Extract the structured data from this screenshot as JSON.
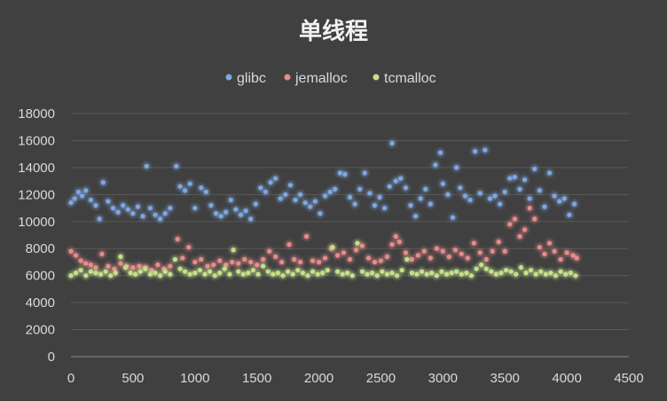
{
  "chart_data": {
    "type": "scatter",
    "title": "单线程",
    "xlabel": "",
    "ylabel": "",
    "xlim": [
      0,
      4500
    ],
    "ylim": [
      0,
      18000
    ],
    "x_ticks": [
      "0",
      "500",
      "1000",
      "1500",
      "2000",
      "2500",
      "3000",
      "3500",
      "4000",
      "4500"
    ],
    "y_ticks": [
      "0",
      "2000",
      "4000",
      "6000",
      "8000",
      "10000",
      "12000",
      "14000",
      "16000",
      "18000"
    ],
    "grid": true,
    "legend_position": "top",
    "background": "#404040",
    "series": [
      {
        "name": "glibc",
        "color": "#7fa7e0",
        "points": [
          [
            0,
            11400
          ],
          [
            30,
            11700
          ],
          [
            60,
            12200
          ],
          [
            90,
            11900
          ],
          [
            120,
            12300
          ],
          [
            160,
            11600
          ],
          [
            200,
            11200
          ],
          [
            230,
            10200
          ],
          [
            260,
            12900
          ],
          [
            300,
            11500
          ],
          [
            340,
            11000
          ],
          [
            380,
            10700
          ],
          [
            420,
            11200
          ],
          [
            460,
            10900
          ],
          [
            500,
            10600
          ],
          [
            540,
            11100
          ],
          [
            580,
            10400
          ],
          [
            610,
            14100
          ],
          [
            640,
            11000
          ],
          [
            680,
            10500
          ],
          [
            720,
            10200
          ],
          [
            760,
            10600
          ],
          [
            800,
            11000
          ],
          [
            850,
            14100
          ],
          [
            880,
            12600
          ],
          [
            920,
            12300
          ],
          [
            960,
            12800
          ],
          [
            1000,
            11000
          ],
          [
            1050,
            12500
          ],
          [
            1090,
            12200
          ],
          [
            1130,
            11200
          ],
          [
            1170,
            10600
          ],
          [
            1210,
            10400
          ],
          [
            1250,
            10700
          ],
          [
            1290,
            11600
          ],
          [
            1330,
            10900
          ],
          [
            1370,
            10500
          ],
          [
            1410,
            10800
          ],
          [
            1450,
            10200
          ],
          [
            1490,
            11300
          ],
          [
            1530,
            12500
          ],
          [
            1570,
            12200
          ],
          [
            1610,
            12900
          ],
          [
            1650,
            13200
          ],
          [
            1690,
            11700
          ],
          [
            1730,
            12000
          ],
          [
            1770,
            12700
          ],
          [
            1810,
            11600
          ],
          [
            1850,
            12000
          ],
          [
            1890,
            11400
          ],
          [
            1930,
            11100
          ],
          [
            1970,
            11500
          ],
          [
            2010,
            10600
          ],
          [
            2050,
            11900
          ],
          [
            2090,
            12200
          ],
          [
            2130,
            12400
          ],
          [
            2170,
            13600
          ],
          [
            2210,
            13500
          ],
          [
            2250,
            11800
          ],
          [
            2290,
            11300
          ],
          [
            2330,
            12400
          ],
          [
            2370,
            13600
          ],
          [
            2410,
            12100
          ],
          [
            2450,
            11200
          ],
          [
            2490,
            11800
          ],
          [
            2530,
            11000
          ],
          [
            2570,
            12600
          ],
          [
            2590,
            15800
          ],
          [
            2620,
            13000
          ],
          [
            2660,
            13200
          ],
          [
            2700,
            12500
          ],
          [
            2740,
            11200
          ],
          [
            2780,
            10400
          ],
          [
            2820,
            11700
          ],
          [
            2860,
            12400
          ],
          [
            2900,
            11300
          ],
          [
            2940,
            14200
          ],
          [
            2980,
            15100
          ],
          [
            3000,
            12800
          ],
          [
            3040,
            12000
          ],
          [
            3080,
            10300
          ],
          [
            3110,
            14000
          ],
          [
            3140,
            12500
          ],
          [
            3180,
            11900
          ],
          [
            3220,
            11600
          ],
          [
            3260,
            15200
          ],
          [
            3300,
            12100
          ],
          [
            3340,
            15300
          ],
          [
            3380,
            11700
          ],
          [
            3420,
            11900
          ],
          [
            3460,
            11300
          ],
          [
            3500,
            12200
          ],
          [
            3540,
            13200
          ],
          [
            3580,
            13300
          ],
          [
            3620,
            12400
          ],
          [
            3660,
            13100
          ],
          [
            3700,
            11700
          ],
          [
            3740,
            13900
          ],
          [
            3780,
            12300
          ],
          [
            3820,
            11100
          ],
          [
            3860,
            13600
          ],
          [
            3900,
            11900
          ],
          [
            3940,
            11500
          ],
          [
            3980,
            11700
          ],
          [
            4020,
            10500
          ],
          [
            4060,
            11300
          ]
        ]
      },
      {
        "name": "jemalloc",
        "color": "#e88b8b",
        "points": [
          [
            0,
            7800
          ],
          [
            40,
            7500
          ],
          [
            80,
            7100
          ],
          [
            120,
            6900
          ],
          [
            160,
            6800
          ],
          [
            200,
            6600
          ],
          [
            250,
            7600
          ],
          [
            300,
            6700
          ],
          [
            350,
            6500
          ],
          [
            400,
            6900
          ],
          [
            450,
            6700
          ],
          [
            500,
            6600
          ],
          [
            550,
            6700
          ],
          [
            600,
            6600
          ],
          [
            650,
            6400
          ],
          [
            700,
            6800
          ],
          [
            750,
            6500
          ],
          [
            800,
            6700
          ],
          [
            860,
            8700
          ],
          [
            900,
            7300
          ],
          [
            950,
            8100
          ],
          [
            1000,
            7000
          ],
          [
            1050,
            7200
          ],
          [
            1100,
            6700
          ],
          [
            1150,
            6800
          ],
          [
            1200,
            7100
          ],
          [
            1250,
            6800
          ],
          [
            1300,
            7000
          ],
          [
            1350,
            6900
          ],
          [
            1400,
            7200
          ],
          [
            1450,
            7000
          ],
          [
            1500,
            6800
          ],
          [
            1550,
            7200
          ],
          [
            1600,
            7800
          ],
          [
            1650,
            7400
          ],
          [
            1700,
            7000
          ],
          [
            1760,
            8300
          ],
          [
            1800,
            7200
          ],
          [
            1850,
            7000
          ],
          [
            1900,
            8900
          ],
          [
            1950,
            7100
          ],
          [
            2000,
            7000
          ],
          [
            2050,
            7300
          ],
          [
            2100,
            8000
          ],
          [
            2150,
            7500
          ],
          [
            2200,
            7700
          ],
          [
            2250,
            7200
          ],
          [
            2300,
            7900
          ],
          [
            2350,
            8200
          ],
          [
            2400,
            7300
          ],
          [
            2450,
            7000
          ],
          [
            2500,
            7100
          ],
          [
            2550,
            7400
          ],
          [
            2590,
            8300
          ],
          [
            2620,
            8900
          ],
          [
            2650,
            8500
          ],
          [
            2700,
            7700
          ],
          [
            2750,
            7200
          ],
          [
            2800,
            7500
          ],
          [
            2850,
            7800
          ],
          [
            2900,
            7300
          ],
          [
            2950,
            8000
          ],
          [
            3000,
            7800
          ],
          [
            3050,
            7400
          ],
          [
            3100,
            7900
          ],
          [
            3150,
            7600
          ],
          [
            3200,
            7300
          ],
          [
            3250,
            8400
          ],
          [
            3300,
            7700
          ],
          [
            3350,
            7200
          ],
          [
            3400,
            7800
          ],
          [
            3450,
            8500
          ],
          [
            3500,
            7800
          ],
          [
            3540,
            9800
          ],
          [
            3580,
            10200
          ],
          [
            3620,
            8900
          ],
          [
            3660,
            9400
          ],
          [
            3700,
            11000
          ],
          [
            3740,
            10200
          ],
          [
            3780,
            8100
          ],
          [
            3820,
            7600
          ],
          [
            3860,
            8400
          ],
          [
            3900,
            7800
          ],
          [
            3950,
            7200
          ],
          [
            4000,
            7700
          ],
          [
            4050,
            7500
          ],
          [
            4080,
            7300
          ]
        ]
      },
      {
        "name": "tcmalloc",
        "color": "#c5e08a",
        "points": [
          [
            0,
            6000
          ],
          [
            40,
            6200
          ],
          [
            80,
            6400
          ],
          [
            120,
            6000
          ],
          [
            160,
            6300
          ],
          [
            200,
            6200
          ],
          [
            240,
            6100
          ],
          [
            280,
            6300
          ],
          [
            320,
            6000
          ],
          [
            360,
            6200
          ],
          [
            400,
            7400
          ],
          [
            440,
            6600
          ],
          [
            480,
            6200
          ],
          [
            520,
            6100
          ],
          [
            560,
            6300
          ],
          [
            600,
            6500
          ],
          [
            640,
            6100
          ],
          [
            680,
            6200
          ],
          [
            720,
            6000
          ],
          [
            760,
            6300
          ],
          [
            800,
            6100
          ],
          [
            840,
            7200
          ],
          [
            880,
            6500
          ],
          [
            920,
            6300
          ],
          [
            960,
            6100
          ],
          [
            1000,
            6200
          ],
          [
            1040,
            6400
          ],
          [
            1080,
            6100
          ],
          [
            1120,
            6300
          ],
          [
            1160,
            6000
          ],
          [
            1200,
            6200
          ],
          [
            1240,
            6500
          ],
          [
            1280,
            6100
          ],
          [
            1310,
            7900
          ],
          [
            1350,
            6300
          ],
          [
            1390,
            6100
          ],
          [
            1430,
            6200
          ],
          [
            1470,
            6400
          ],
          [
            1510,
            6100
          ],
          [
            1550,
            6700
          ],
          [
            1590,
            6300
          ],
          [
            1630,
            6100
          ],
          [
            1670,
            6200
          ],
          [
            1710,
            6000
          ],
          [
            1750,
            6300
          ],
          [
            1790,
            6100
          ],
          [
            1830,
            6400
          ],
          [
            1870,
            6200
          ],
          [
            1910,
            6000
          ],
          [
            1950,
            6300
          ],
          [
            1990,
            6100
          ],
          [
            2030,
            6200
          ],
          [
            2070,
            6400
          ],
          [
            2110,
            8100
          ],
          [
            2150,
            6300
          ],
          [
            2190,
            6100
          ],
          [
            2230,
            6200
          ],
          [
            2270,
            6000
          ],
          [
            2310,
            8400
          ],
          [
            2350,
            6300
          ],
          [
            2390,
            6100
          ],
          [
            2430,
            6200
          ],
          [
            2470,
            6000
          ],
          [
            2510,
            6300
          ],
          [
            2550,
            6100
          ],
          [
            2590,
            6200
          ],
          [
            2630,
            6000
          ],
          [
            2670,
            6400
          ],
          [
            2710,
            7200
          ],
          [
            2750,
            6200
          ],
          [
            2790,
            6100
          ],
          [
            2830,
            6300
          ],
          [
            2870,
            6100
          ],
          [
            2910,
            6200
          ],
          [
            2950,
            6000
          ],
          [
            2990,
            6300
          ],
          [
            3030,
            6100
          ],
          [
            3070,
            6200
          ],
          [
            3110,
            6300
          ],
          [
            3150,
            6100
          ],
          [
            3190,
            6200
          ],
          [
            3230,
            6000
          ],
          [
            3270,
            6500
          ],
          [
            3310,
            6800
          ],
          [
            3350,
            6500
          ],
          [
            3390,
            6300
          ],
          [
            3430,
            6100
          ],
          [
            3470,
            6200
          ],
          [
            3510,
            6400
          ],
          [
            3550,
            6300
          ],
          [
            3590,
            6100
          ],
          [
            3630,
            6600
          ],
          [
            3670,
            6200
          ],
          [
            3710,
            6400
          ],
          [
            3750,
            6100
          ],
          [
            3790,
            6300
          ],
          [
            3830,
            6100
          ],
          [
            3870,
            6200
          ],
          [
            3910,
            6000
          ],
          [
            3950,
            6300
          ],
          [
            3990,
            6100
          ],
          [
            4030,
            6200
          ],
          [
            4070,
            6000
          ]
        ]
      }
    ]
  }
}
